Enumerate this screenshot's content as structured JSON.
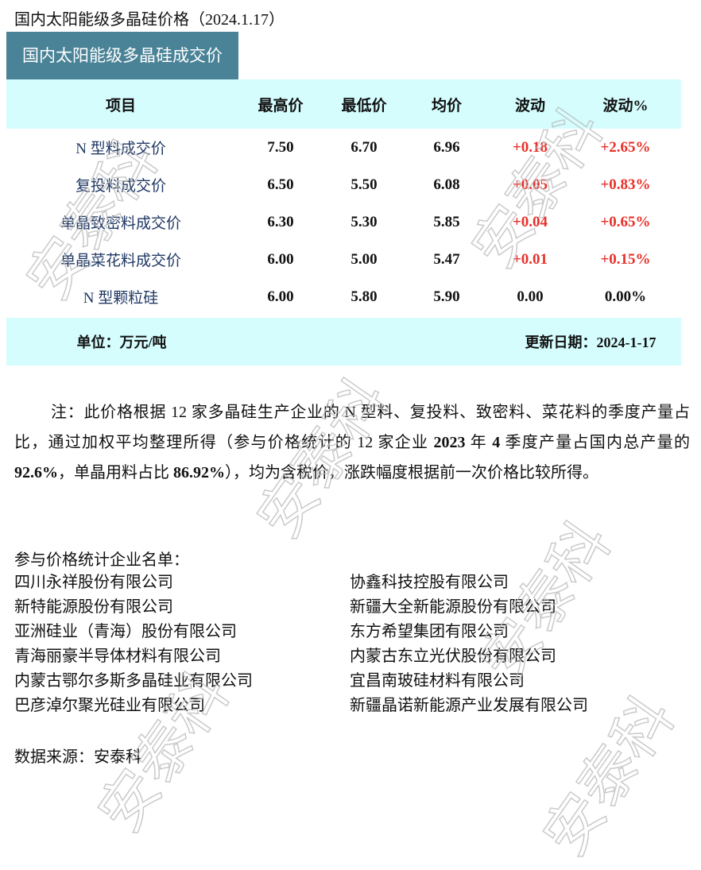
{
  "title": "国内太阳能级多晶硅价格（2024.1.17）",
  "banner": "国内太阳能级多晶硅成交价",
  "table": {
    "headers": [
      "项目",
      "最高价",
      "最低价",
      "均价",
      "波动",
      "波动%"
    ],
    "rows": [
      {
        "item": "N 型料成交价",
        "high": "7.50",
        "low": "6.70",
        "avg": "6.96",
        "chg": "+0.18",
        "pct": "+2.65%",
        "up": true
      },
      {
        "item": "复投料成交价",
        "high": "6.50",
        "low": "5.50",
        "avg": "6.08",
        "chg": "+0.05",
        "pct": "+0.83%",
        "up": true
      },
      {
        "item": "单晶致密料成交价",
        "high": "6.30",
        "low": "5.30",
        "avg": "5.85",
        "chg": "+0.04",
        "pct": "+0.65%",
        "up": true
      },
      {
        "item": "单晶菜花料成交价",
        "high": "6.00",
        "low": "5.00",
        "avg": "5.47",
        "chg": "+0.01",
        "pct": "+0.15%",
        "up": true
      },
      {
        "item": "N 型颗粒硅",
        "high": "6.00",
        "low": "5.80",
        "avg": "5.90",
        "chg": "0.00",
        "pct": "0.00%",
        "up": false
      }
    ],
    "unit": "单位：万元/吨",
    "update": "更新日期：2024-1-17"
  },
  "note": {
    "p1": "注：此价格根据 12 家多晶硅生产企业的 N 型料、复投料、致密料、菜花料的季度产量占比，通过加权平均整理所得（参与价格统计的 12 家企业 ",
    "b1": "2023",
    "p2": " 年 ",
    "b2": "4",
    "p3": " 季度产量占国内总产量的 ",
    "b3": "92.6%",
    "p4": "，单晶用料占比 ",
    "b4": "86.92%",
    "p5": "），均为含税价，涨跌幅度根据前一次价格比较所得。"
  },
  "companies": {
    "header": "参与价格统计企业名单：",
    "left": [
      "四川永祥股份有限公司",
      "新特能源股份有限公司",
      "亚洲硅业（青海）股份有限公司",
      "青海丽豪半导体材料有限公司",
      "内蒙古鄂尔多斯多晶硅业有限公司",
      "巴彦淖尔聚光硅业有限公司"
    ],
    "right": [
      "协鑫科技控股有限公司",
      "新疆大全新能源股份有限公司",
      "东方希望集团有限公司",
      "内蒙古东立光伏股份有限公司",
      "宜昌南玻硅材料有限公司",
      "新疆晶诺新能源产业发展有限公司"
    ]
  },
  "source": "数据来源：安泰科",
  "watermark": "安泰科",
  "colors": {
    "banner": "#4a8397",
    "header_bg": "#d5fdfe",
    "up": "#e8312a",
    "item": "#1f3864"
  }
}
